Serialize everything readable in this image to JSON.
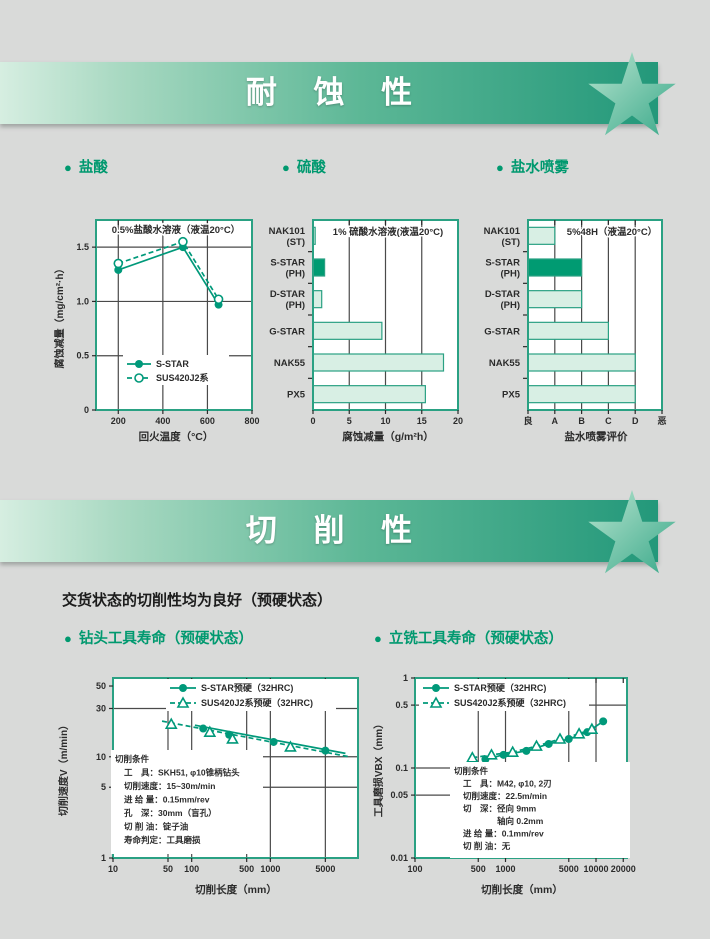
{
  "banners": [
    {
      "title": "耐 蚀 性"
    },
    {
      "title": "切 削 性"
    }
  ],
  "corrosion": {
    "sections": [
      {
        "label": "盐酸"
      },
      {
        "label": "硫酸"
      },
      {
        "label": "盐水喷雾"
      }
    ]
  },
  "machinability": {
    "intro": "交货状态的切削性均为良好（预硬状态）",
    "sections": [
      {
        "label": "钻头工具寿命（预硬状态）"
      },
      {
        "label": "立铣工具寿命（预硬状态）"
      }
    ]
  },
  "colors": {
    "accent": "#00997a",
    "chart_border": "#2aa183",
    "bar_light": "#d8efe4",
    "bar_dark": "#009b72",
    "grid": "#4a4a4a",
    "text": "#2b2b2b",
    "header_green": "#00996f"
  },
  "chart_data": [
    {
      "id": "hydrochloric-acid",
      "type": "line",
      "title": "0.5%盐酸水溶液（液温20°C）",
      "xlabel": "回火温度（°C）",
      "ylabel": "腐蚀减量（mg/cm²·h）",
      "xlim": [
        100,
        800
      ],
      "ylim": [
        0,
        1.75
      ],
      "xticks": [
        200,
        400,
        600,
        800
      ],
      "yticks": [
        1.5,
        1.0,
        0.5,
        0
      ],
      "ytick_labels": [
        "1.5",
        "1.0",
        "0.5",
        "0"
      ],
      "xgrid": [
        200,
        400,
        600
      ],
      "ygrid": [
        0.5,
        1.0,
        1.5
      ],
      "series": [
        {
          "name": "S-STAR",
          "marker": "circle-filled",
          "line": "solid",
          "points": [
            [
              200,
              1.29
            ],
            [
              490,
              1.5
            ],
            [
              650,
              0.97
            ]
          ]
        },
        {
          "name": "SUS420J2系",
          "marker": "circle-open",
          "line": "dashed",
          "points": [
            [
              200,
              1.35
            ],
            [
              490,
              1.55
            ],
            [
              650,
              1.02
            ]
          ]
        }
      ]
    },
    {
      "id": "sulfuric-acid",
      "type": "barh",
      "title": "1% 硫酸水溶液(液温20°C)",
      "xlabel": "腐蚀减量（g/m²h）",
      "categories": [
        [
          "NAK101",
          "(ST)"
        ],
        [
          "S-STAR",
          "(PH)"
        ],
        [
          "D-STAR",
          "(PH)"
        ],
        [
          "G-STAR"
        ],
        [
          "NAK55"
        ],
        [
          "PX5"
        ]
      ],
      "values": [
        0.3,
        1.6,
        1.2,
        9.5,
        18,
        15.5
      ],
      "highlight_index": 1,
      "xlim": [
        0,
        20
      ],
      "xticks": [
        0,
        5,
        10,
        15,
        20
      ],
      "xgrid": [
        5,
        10,
        15
      ]
    },
    {
      "id": "salt-spray",
      "type": "barh",
      "title": "5%48H（液温20°C）",
      "xlabel": "盐水喷雾评价",
      "categories": [
        [
          "NAK101",
          "(ST)"
        ],
        [
          "S-STAR",
          "(PH)"
        ],
        [
          "D-STAR",
          "(PH)"
        ],
        [
          "G-STAR"
        ],
        [
          "NAK55"
        ],
        [
          "PX5"
        ]
      ],
      "values": [
        1,
        2,
        2,
        3,
        4,
        4
      ],
      "highlight_index": 1,
      "xlim": [
        0,
        5
      ],
      "xticks": [
        0,
        1,
        2,
        3,
        4,
        5
      ],
      "xtick_labels": [
        "良",
        "A",
        "B",
        "C",
        "D",
        "恶"
      ],
      "xgrid": [
        1,
        2,
        3,
        4
      ]
    },
    {
      "id": "drill-tool-life",
      "type": "line",
      "xscale": "log",
      "yscale": "log",
      "xlabel": "切削长度（mm）",
      "ylabel": "切削速度V（m/min）",
      "xlim": [
        10,
        13000
      ],
      "ylim": [
        1,
        60
      ],
      "xticks": [
        10,
        50,
        100,
        500,
        1000,
        5000
      ],
      "yticks": [
        50,
        30,
        10,
        5,
        1
      ],
      "xgrid": [
        50,
        100,
        500,
        1000,
        5000
      ],
      "ygrid": [
        30,
        10,
        5
      ],
      "series": [
        {
          "name": "S-STAR预硬（32HRC)",
          "marker": "circle-filled",
          "line": "solid",
          "points": [
            [
              140,
              19
            ],
            [
              300,
              16.5
            ],
            [
              1100,
              14
            ],
            [
              5000,
              11.5
            ]
          ],
          "trend": [
            [
              110,
              20.5
            ],
            [
              9000,
              10.8
            ]
          ]
        },
        {
          "name": "SUS420J2系预硬（32HRC)",
          "marker": "triangle-open",
          "line": "dashed",
          "points": [
            [
              55,
              21
            ],
            [
              170,
              17.5
            ],
            [
              330,
              15
            ],
            [
              1800,
              12.5
            ]
          ],
          "trend": [
            [
              42,
              22.5
            ],
            [
              10000,
              10
            ]
          ]
        }
      ],
      "conditions": [
        "切削条件",
        "工　具：SKH51, φ10锥柄钻头",
        "切削速度：15~30m/min",
        "进 给 量：0.15mm/rev",
        "孔　深：30mm（盲孔）",
        "切 削 油：锭子油",
        "寿命判定：工具磨损"
      ]
    },
    {
      "id": "end-mill-tool-life",
      "type": "line",
      "xscale": "log",
      "yscale": "log",
      "xlabel": "切削长度（mm）",
      "ylabel": "工具磨损VBX（mm）",
      "xlim": [
        100,
        22000
      ],
      "ylim": [
        0.01,
        1
      ],
      "xticks": [
        100,
        500,
        1000,
        5000,
        10000,
        20000
      ],
      "xtick_labels": [
        "100",
        "500",
        "1000",
        "5000",
        "10000",
        "20000"
      ],
      "yticks": [
        1,
        0.5,
        0.1,
        0.05,
        0.01
      ],
      "ytick_labels": [
        "1",
        "0.5",
        "0.1",
        "0.05",
        "0.01"
      ],
      "xgrid": [
        500,
        1000,
        5000,
        10000
      ],
      "ygrid": [
        0.5,
        0.1,
        0.05
      ],
      "series": [
        {
          "name": "S-STAR预硬（32HRC)",
          "marker": "circle-filled",
          "line": "solid",
          "points": [
            [
              600,
              0.125
            ],
            [
              950,
              0.14
            ],
            [
              1700,
              0.155
            ],
            [
              3000,
              0.185
            ],
            [
              5000,
              0.21
            ],
            [
              8000,
              0.25
            ],
            [
              12000,
              0.33
            ]
          ]
        },
        {
          "name": "SUS420J2系预硬（32HRC)",
          "marker": "triangle-open",
          "line": "dashed",
          "points": [
            [
              430,
              0.13
            ],
            [
              700,
              0.14
            ],
            [
              1200,
              0.15
            ],
            [
              2200,
              0.175
            ],
            [
              4000,
              0.21
            ],
            [
              6500,
              0.24
            ],
            [
              9000,
              0.27
            ]
          ]
        }
      ],
      "conditions": [
        "切削条件",
        "工　具：M42, φ10, 2刃",
        "切削速度：22.5m/min",
        "切　深：径向 9mm",
        "　　　　轴向 0.2mm",
        "进 给 量：0.1mm/rev",
        "切 削 油：无"
      ]
    }
  ]
}
